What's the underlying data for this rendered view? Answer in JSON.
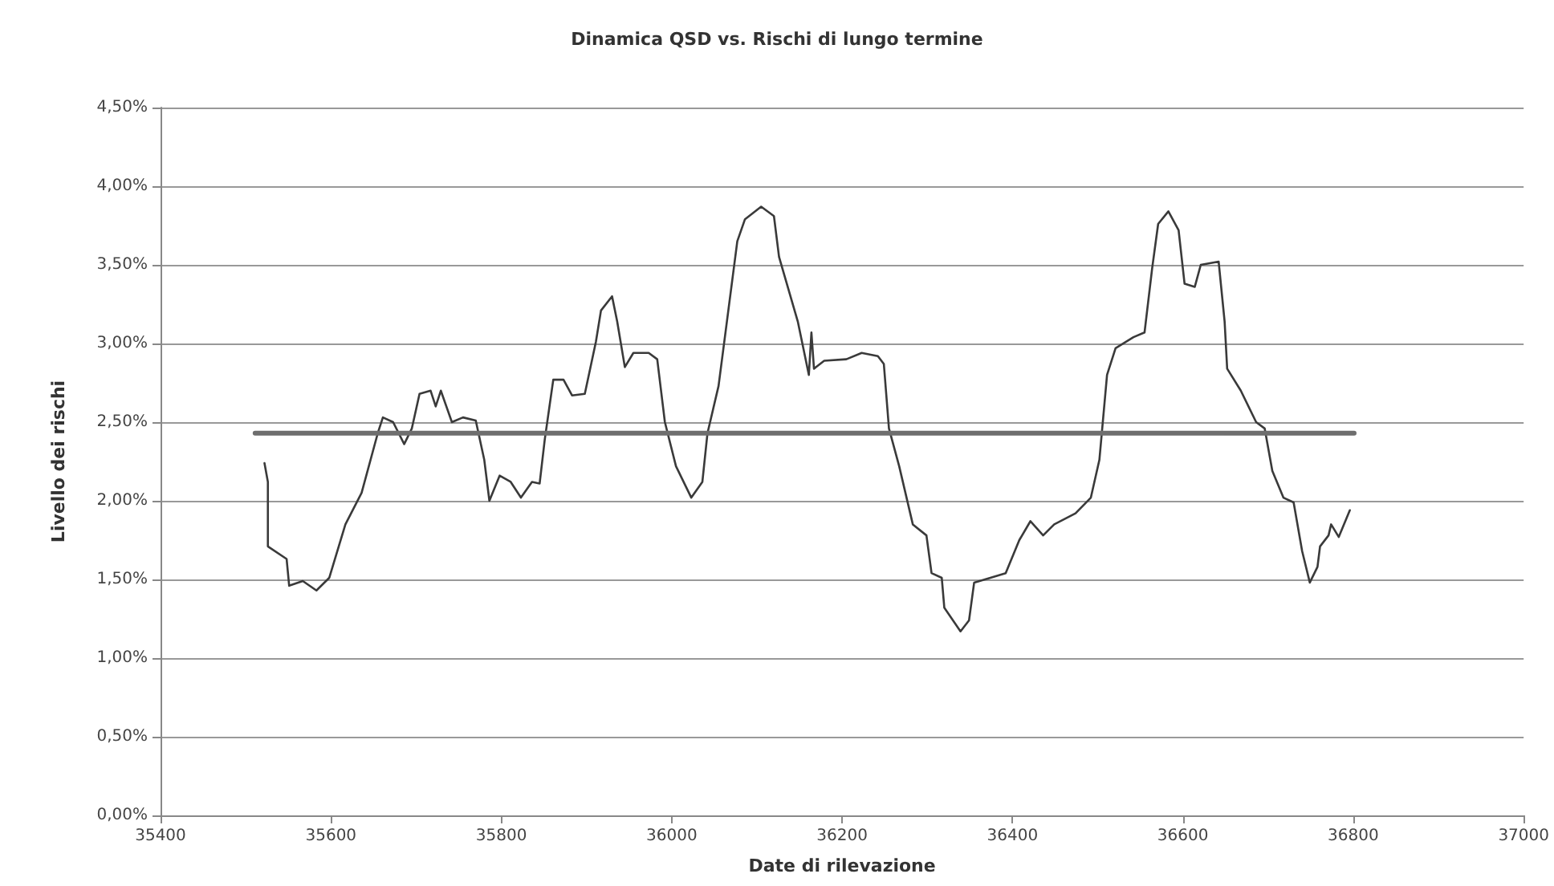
{
  "chart_data": {
    "type": "line",
    "title": "Dinamica QSD vs. Rischi di lungo termine",
    "xlabel": "Date di rilevazione",
    "ylabel": "Livello dei rischi",
    "xlim": [
      35400,
      37000
    ],
    "xticks": [
      35400,
      35600,
      35800,
      36000,
      36200,
      36400,
      36600,
      36800,
      37000
    ],
    "ylim": [
      0,
      4.5
    ],
    "yticks": [
      {
        "value": 0,
        "label": "0,00%"
      },
      {
        "value": 0.5,
        "label": "0,50%"
      },
      {
        "value": 1,
        "label": "1,00%"
      },
      {
        "value": 1.5,
        "label": "1,50%"
      },
      {
        "value": 2,
        "label": "2,00%"
      },
      {
        "value": 2.5,
        "label": "2,50%"
      },
      {
        "value": 3,
        "label": "3,00%"
      },
      {
        "value": 3.5,
        "label": "3,50%"
      },
      {
        "value": 4,
        "label": "4,00%"
      },
      {
        "value": 4.5,
        "label": "4,50%"
      }
    ],
    "grid": "y",
    "legend": false,
    "marker": "none",
    "line_style": "solid",
    "series": [
      {
        "color": "#3a3a3a",
        "x": [
          35522,
          35526,
          35526,
          35548,
          35551,
          35567,
          35583,
          35598,
          35617,
          35636,
          35655,
          35661,
          35673,
          35686,
          35695,
          35704,
          35717,
          35723,
          35729,
          35742,
          35755,
          35770,
          35780,
          35786,
          35798,
          35811,
          35823,
          35836,
          35845,
          35851,
          35861,
          35873,
          35883,
          35898,
          35911,
          35917,
          35930,
          35936,
          35945,
          35955,
          35973,
          35983,
          35992,
          36005,
          36023,
          36036,
          36042,
          36055,
          36077,
          36086,
          36105,
          36120,
          36126,
          36148,
          36161,
          36164,
          36167,
          36179,
          36205,
          36223,
          36242,
          36249,
          36255,
          36267,
          36283,
          36299,
          36305,
          36317,
          36320,
          36339,
          36349,
          36355,
          36374,
          36392,
          36408,
          36421,
          36436,
          36449,
          36474,
          36492,
          36502,
          36511,
          36521,
          36542,
          36555,
          36564,
          36571,
          36583,
          36595,
          36602,
          36614,
          36621,
          36642,
          36649,
          36652,
          36668,
          36686,
          36696,
          36705,
          36718,
          36730,
          36740,
          36749,
          36758,
          36761,
          36771,
          36774,
          36783,
          36796
        ],
        "values": [
          2.24,
          2.12,
          1.71,
          1.63,
          1.46,
          1.49,
          1.43,
          1.51,
          1.85,
          2.05,
          2.43,
          2.53,
          2.5,
          2.36,
          2.46,
          2.68,
          2.7,
          2.6,
          2.7,
          2.5,
          2.53,
          2.51,
          2.26,
          2.0,
          2.16,
          2.12,
          2.02,
          2.12,
          2.11,
          2.39,
          2.77,
          2.77,
          2.67,
          2.68,
          3.01,
          3.21,
          3.3,
          3.14,
          2.85,
          2.94,
          2.94,
          2.9,
          2.5,
          2.22,
          2.02,
          2.12,
          2.43,
          2.73,
          3.65,
          3.79,
          3.87,
          3.81,
          3.55,
          3.14,
          2.8,
          3.07,
          2.84,
          2.89,
          2.9,
          2.94,
          2.92,
          2.87,
          2.46,
          2.22,
          1.85,
          1.78,
          1.54,
          1.51,
          1.32,
          1.17,
          1.24,
          1.48,
          1.51,
          1.54,
          1.75,
          1.87,
          1.78,
          1.85,
          1.92,
          2.02,
          2.26,
          2.8,
          2.97,
          3.04,
          3.07,
          3.48,
          3.76,
          3.84,
          3.72,
          3.38,
          3.36,
          3.5,
          3.52,
          3.14,
          2.84,
          2.7,
          2.5,
          2.46,
          2.19,
          2.02,
          1.99,
          1.68,
          1.48,
          1.58,
          1.71,
          1.78,
          1.85,
          1.77,
          1.94
        ]
      },
      {
        "type": "line",
        "color": "#6e6e6e",
        "x": [
          35511,
          36801
        ],
        "values": [
          2.43,
          2.43
        ]
      }
    ]
  }
}
